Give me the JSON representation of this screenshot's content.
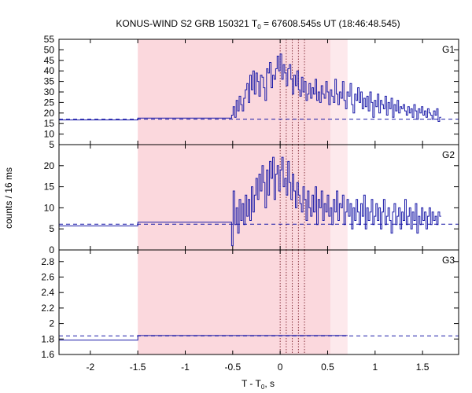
{
  "chart_data": {
    "type": "line",
    "title_prefix": "KONUS-WIND S2 GRB 150321 T",
    "title_sub": "0",
    "title_suffix": " = 67608.545s UT (18:46:48.545)",
    "xlabel_prefix": "T - T",
    "xlabel_sub": "0",
    "xlabel_suffix": ", s",
    "ylabel": "counts / 16 ms",
    "xlim": [
      -2.33,
      1.88
    ],
    "xticks": [
      -2,
      -1.5,
      -1,
      -0.5,
      0,
      0.5,
      1,
      1.5
    ],
    "xtick_labels": [
      "-2",
      "-1.5",
      "-1",
      "-0.5",
      "0",
      "0.5",
      "1",
      "1.5"
    ],
    "highlight_dark": [
      -1.5,
      0.53
    ],
    "highlight_light": [
      0.53,
      0.71
    ],
    "vlines": [
      0,
      0.064,
      0.128,
      0.192,
      0.256
    ],
    "colors": {
      "line": "#1a1aa8",
      "dashed": "#1a1aa8",
      "band_dark": "#fbd8dd",
      "band_light": "#fde9ec",
      "vline": "#7a1f2b"
    },
    "panels": [
      {
        "name": "G1",
        "ylim": [
          5,
          55
        ],
        "yticks": [
          5,
          10,
          15,
          20,
          25,
          30,
          35,
          40,
          45,
          50,
          55
        ],
        "background": 17.1,
        "pre": [
          {
            "x0": -2.33,
            "x1": -1.5,
            "y": 16.7
          },
          {
            "x0": -1.5,
            "x1": -0.512,
            "y": 17.6
          }
        ],
        "values": [
          19,
          23,
          18,
          26,
          21,
          28,
          24,
          21,
          27,
          31,
          34,
          25,
          38,
          31,
          40,
          29,
          39,
          35,
          28,
          38,
          37,
          32,
          26,
          41,
          39,
          44,
          32,
          38,
          36,
          41,
          47,
          40,
          48,
          36,
          43,
          39,
          33,
          41,
          43,
          36,
          29,
          38,
          33,
          40,
          31,
          28,
          37,
          30,
          35,
          26,
          29,
          34,
          27,
          32,
          29,
          36,
          26,
          30,
          25,
          33,
          29,
          27,
          35,
          30,
          24,
          31,
          28,
          25,
          36,
          29,
          24,
          30,
          27,
          35,
          26,
          22,
          30,
          28,
          34,
          24,
          20,
          29,
          26,
          32,
          25,
          30,
          22,
          27,
          23,
          28,
          21,
          30,
          25,
          18,
          26,
          23,
          29,
          20,
          26,
          24,
          22,
          28,
          19,
          25,
          22,
          27,
          18,
          24,
          21,
          26,
          20,
          23,
          22,
          24,
          21,
          19,
          23,
          20,
          22,
          18,
          24,
          21,
          17,
          22,
          20,
          23,
          19,
          21,
          18,
          22,
          20,
          19,
          17,
          21,
          19,
          22,
          16,
          18
        ]
      },
      {
        "name": "G2",
        "ylim": [
          0,
          25
        ],
        "yticks": [
          0,
          5,
          10,
          15,
          20
        ],
        "background": 6.1,
        "pre": [
          {
            "x0": -2.33,
            "x1": -1.5,
            "y": 5.7
          },
          {
            "x0": -1.5,
            "x1": -0.512,
            "y": 6.6
          }
        ],
        "values": [
          1,
          14,
          6,
          10,
          4,
          12,
          7,
          11,
          6,
          13,
          8,
          12,
          7,
          15,
          9,
          13,
          17,
          12,
          18,
          14,
          20,
          16,
          10,
          19,
          13,
          21,
          17,
          22,
          12,
          18,
          20,
          14,
          19,
          22,
          15,
          17,
          13,
          21,
          16,
          12,
          18,
          14,
          10,
          16,
          13,
          11,
          9,
          15,
          12,
          7,
          14,
          10,
          8,
          13,
          9,
          15,
          6,
          12,
          10,
          14,
          7,
          11,
          9,
          13,
          8,
          10,
          6,
          12,
          9,
          14,
          7,
          11,
          10,
          13,
          6,
          9,
          12,
          8,
          11,
          5,
          10,
          7,
          12,
          9,
          6,
          11,
          8,
          13,
          5,
          10,
          7,
          9,
          12,
          6,
          8,
          11,
          7,
          10,
          5,
          9,
          12,
          6,
          8,
          10,
          7,
          4,
          9,
          11,
          6,
          8,
          10,
          5,
          9,
          7,
          12,
          6,
          8,
          10,
          5,
          9,
          7,
          11,
          4,
          8,
          6,
          10,
          7,
          9,
          5,
          8,
          10,
          6,
          9,
          7,
          8,
          6,
          9,
          8
        ]
      },
      {
        "name": "G3",
        "ylim": [
          1.6,
          2.95
        ],
        "yticks": [
          1.6,
          1.8,
          2,
          2.2,
          2.4,
          2.6,
          2.8
        ],
        "background": 1.84,
        "pre": [
          {
            "x0": -2.33,
            "x1": -1.5,
            "y": 1.785
          },
          {
            "x0": -1.5,
            "x1": 0.71,
            "y": 1.845
          }
        ],
        "values": []
      }
    ]
  }
}
